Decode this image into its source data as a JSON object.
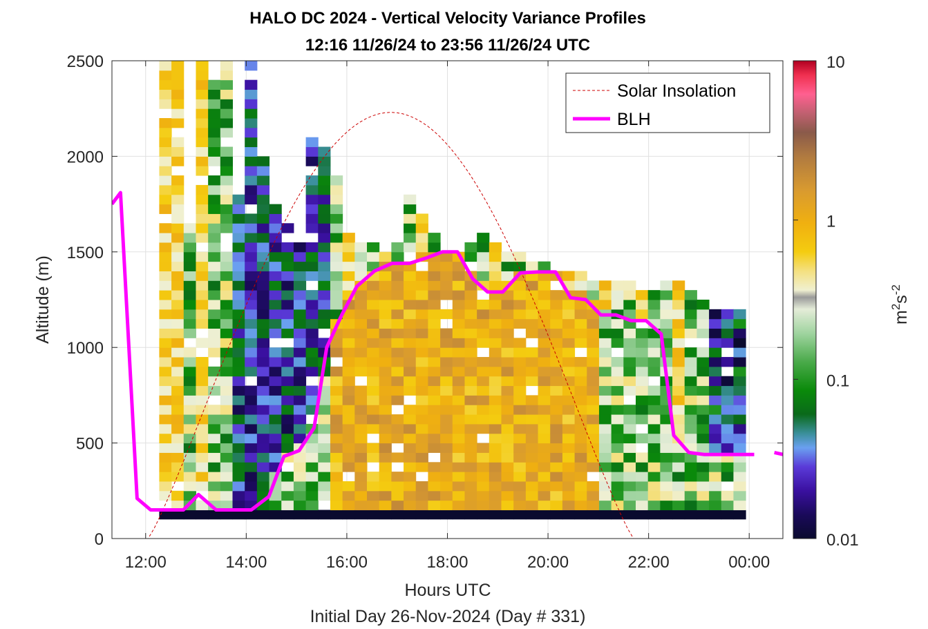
{
  "chart_data": {
    "type": "heatmap",
    "title": "HALO DC 2024 - Vertical Velocity Variance Profiles",
    "subtitle": "12:16 11/26/24 to 23:56 11/26/24  UTC",
    "xlabel": "Hours UTC",
    "xlabel2": "Initial Day 26-Nov-2024 (Day # 331)",
    "ylabel": "Altitude (m)",
    "x_ticks": [
      "12:00",
      "14:00",
      "16:00",
      "18:00",
      "20:00",
      "22:00",
      "00:00"
    ],
    "x_tick_hours": [
      12,
      14,
      16,
      18,
      20,
      22,
      24
    ],
    "y_ticks": [
      "0",
      "500",
      "1000",
      "1500",
      "2000",
      "2500"
    ],
    "y_tick_values": [
      0,
      500,
      1000,
      1500,
      2000,
      2500
    ],
    "xlim_hours": [
      11.33,
      24.67
    ],
    "ylim": [
      0,
      2500
    ],
    "colorbar": {
      "label": "m²s⁻²",
      "label_base": "m",
      "label_sup1": "2",
      "label_mid": "s",
      "label_sup2": "-2",
      "scale": "log",
      "range": [
        0.01,
        10
      ],
      "ticks": [
        "0.01",
        "0.1",
        "1",
        "10"
      ],
      "tick_values": [
        0.01,
        0.1,
        1,
        10
      ]
    },
    "legend": {
      "position": "top-right",
      "entries": [
        {
          "label": "Solar Insolation",
          "color": "#cc0000",
          "style": "dashed"
        },
        {
          "label": "BLH",
          "color": "#ff00ff",
          "style": "solid"
        }
      ]
    },
    "series": [
      {
        "name": "BLH",
        "color": "#ff00ff",
        "x_hours": [
          11.33,
          11.5,
          11.83,
          12.1,
          12.4,
          12.75,
          13.05,
          13.4,
          13.75,
          14.1,
          14.45,
          14.75,
          15.05,
          15.35,
          15.6,
          15.9,
          16.2,
          16.55,
          16.9,
          17.25,
          17.6,
          17.9,
          18.2,
          18.5,
          18.8,
          19.1,
          19.45,
          19.8,
          20.15,
          20.45,
          20.75,
          21.05,
          21.35,
          21.65,
          21.95,
          22.25,
          22.5,
          22.8,
          23.1,
          23.45,
          23.75,
          24.1
        ],
        "y_m": [
          1750,
          1810,
          210,
          150,
          150,
          150,
          230,
          150,
          150,
          150,
          220,
          430,
          460,
          580,
          1000,
          1170,
          1320,
          1400,
          1440,
          1440,
          1470,
          1500,
          1500,
          1360,
          1290,
          1290,
          1390,
          1395,
          1395,
          1260,
          1250,
          1170,
          1170,
          1140,
          1140,
          1070,
          540,
          450,
          440,
          440,
          440,
          440
        ]
      },
      {
        "name": "Solar Insolation",
        "color": "#cc0000",
        "peak_hour": 16.9,
        "peak_y_m": 2230,
        "start_hour": 12.05,
        "end_hour": 21.7
      }
    ],
    "data_gap_extra": {
      "x_hours": [
        24.5,
        24.67
      ],
      "y_m": [
        450,
        440
      ]
    },
    "time_range_hours": [
      12.27,
      23.93
    ],
    "heatmap_units": "m^2 s^-2",
    "heatmap_note": "column-wise profiles of vertical velocity variance, 0.01–10 m²s⁻² log color scale"
  }
}
